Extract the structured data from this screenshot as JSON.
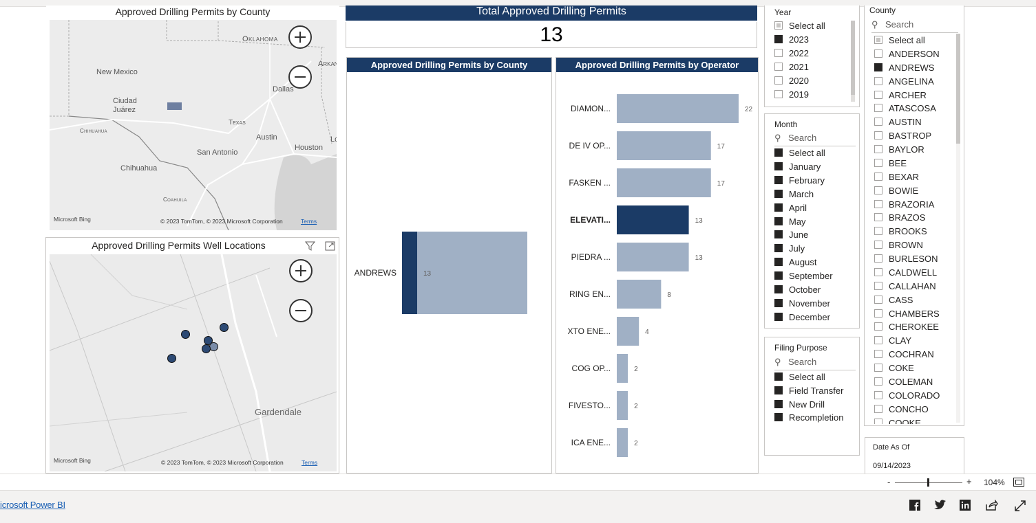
{
  "maps": {
    "county_map": {
      "title": "Approved Drilling Permits by County",
      "labels": {
        "oklahoma": "Oklahoma",
        "new_mexico": "New Mexico",
        "arkansas": "Arkan",
        "dallas": "Dallas",
        "ciudad_juarez_1": "Ciudad",
        "ciudad_juarez_2": "Juárez",
        "chihuahua_state": "Chihuahua",
        "texas": "Texas",
        "austin": "Austin",
        "houston": "Houston",
        "lo": "Lo",
        "san_antonio": "San Antonio",
        "chihuahua_city": "Chihuahua",
        "coahuila": "Coahuila"
      },
      "bing": "Microsoft Bing",
      "attribution": "© 2023 TomTom, © 2023 Microsoft Corporation",
      "terms": "Terms"
    },
    "well_map": {
      "title": "Approved Drilling Permits Well Locations",
      "labels": {
        "gardendale": "Gardendale"
      },
      "bing": "Microsoft Bing",
      "attribution": "© 2023 TomTom, © 2023 Microsoft Corporation",
      "terms": "Terms"
    }
  },
  "card": {
    "title": "Total Approved Drilling Permits",
    "value": "13"
  },
  "county_chart": {
    "title": "Approved Drilling Permits by County"
  },
  "operator_chart": {
    "title": "Approved Drilling Permits by Operator"
  },
  "chart_data": [
    {
      "type": "bar",
      "orientation": "horizontal",
      "title": "Approved Drilling Permits by County",
      "categories": [
        "ANDREWS"
      ],
      "values": [
        13
      ],
      "highlighted_values": [
        13
      ],
      "data_labels": [
        "13"
      ],
      "colors": {
        "bar": "#a0b0c5",
        "highlight": "#1b3b66"
      }
    },
    {
      "type": "bar",
      "orientation": "horizontal",
      "title": "Approved Drilling Permits by Operator",
      "categories": [
        "DIAMON...",
        "DE IV OP...",
        "FASKEN ...",
        "ELEVATI...",
        "PIEDRA ...",
        "RING EN...",
        "XTO ENE...",
        "COG OP...",
        "FIVESTO...",
        "ICA ENE..."
      ],
      "values": [
        22,
        17,
        17,
        13,
        13,
        8,
        4,
        2,
        2,
        2
      ],
      "highlighted_category": "ELEVATI...",
      "colors": {
        "bar": "#a0b0c5",
        "highlight": "#1b3b66"
      }
    }
  ],
  "slicers": {
    "year": {
      "title": "Year",
      "items": [
        {
          "label": "Select all",
          "state": "partial"
        },
        {
          "label": "2023",
          "state": "on"
        },
        {
          "label": "2022",
          "state": "off"
        },
        {
          "label": "2021",
          "state": "off"
        },
        {
          "label": "2020",
          "state": "off"
        },
        {
          "label": "2019",
          "state": "off"
        }
      ]
    },
    "month": {
      "title": "Month",
      "search": "Search",
      "items": [
        {
          "label": "Select all",
          "state": "on"
        },
        {
          "label": "January",
          "state": "on"
        },
        {
          "label": "February",
          "state": "on"
        },
        {
          "label": "March",
          "state": "on"
        },
        {
          "label": "April",
          "state": "on"
        },
        {
          "label": "May",
          "state": "on"
        },
        {
          "label": "June",
          "state": "on"
        },
        {
          "label": "July",
          "state": "on"
        },
        {
          "label": "August",
          "state": "on"
        },
        {
          "label": "September",
          "state": "on"
        },
        {
          "label": "October",
          "state": "on"
        },
        {
          "label": "November",
          "state": "on"
        },
        {
          "label": "December",
          "state": "on"
        }
      ]
    },
    "filing": {
      "title": "Filing Purpose",
      "search": "Search",
      "items": [
        {
          "label": "Select all",
          "state": "on"
        },
        {
          "label": "Field Transfer",
          "state": "on"
        },
        {
          "label": "New Drill",
          "state": "on"
        },
        {
          "label": "Recompletion",
          "state": "on"
        }
      ]
    },
    "county": {
      "title": "County",
      "search": "Search",
      "items": [
        {
          "label": "Select all",
          "state": "partial"
        },
        {
          "label": "ANDERSON",
          "state": "off"
        },
        {
          "label": "ANDREWS",
          "state": "on"
        },
        {
          "label": "ANGELINA",
          "state": "off"
        },
        {
          "label": "ARCHER",
          "state": "off"
        },
        {
          "label": "ATASCOSA",
          "state": "off"
        },
        {
          "label": "AUSTIN",
          "state": "off"
        },
        {
          "label": "BASTROP",
          "state": "off"
        },
        {
          "label": "BAYLOR",
          "state": "off"
        },
        {
          "label": "BEE",
          "state": "off"
        },
        {
          "label": "BEXAR",
          "state": "off"
        },
        {
          "label": "BOWIE",
          "state": "off"
        },
        {
          "label": "BRAZORIA",
          "state": "off"
        },
        {
          "label": "BRAZOS",
          "state": "off"
        },
        {
          "label": "BROOKS",
          "state": "off"
        },
        {
          "label": "BROWN",
          "state": "off"
        },
        {
          "label": "BURLESON",
          "state": "off"
        },
        {
          "label": "CALDWELL",
          "state": "off"
        },
        {
          "label": "CALLAHAN",
          "state": "off"
        },
        {
          "label": "CASS",
          "state": "off"
        },
        {
          "label": "CHAMBERS",
          "state": "off"
        },
        {
          "label": "CHEROKEE",
          "state": "off"
        },
        {
          "label": "CLAY",
          "state": "off"
        },
        {
          "label": "COCHRAN",
          "state": "off"
        },
        {
          "label": "COKE",
          "state": "off"
        },
        {
          "label": "COLEMAN",
          "state": "off"
        },
        {
          "label": "COLORADO",
          "state": "off"
        },
        {
          "label": "CONCHO",
          "state": "off"
        },
        {
          "label": "COOKE",
          "state": "off"
        }
      ]
    }
  },
  "date_card": {
    "title": "Date As Of",
    "value": "09/14/2023"
  },
  "zoom": {
    "minus": "-",
    "plus": "+",
    "level": "104%"
  },
  "footer": {
    "link": "icrosoft Power BI",
    "icons": [
      "facebook-icon",
      "twitter-icon",
      "linkedin-icon",
      "share-icon",
      "fullscreen-icon"
    ]
  },
  "colors": {
    "navy": "#1b3b66",
    "bar": "#a0b0c5",
    "point": "#2d4a74"
  }
}
